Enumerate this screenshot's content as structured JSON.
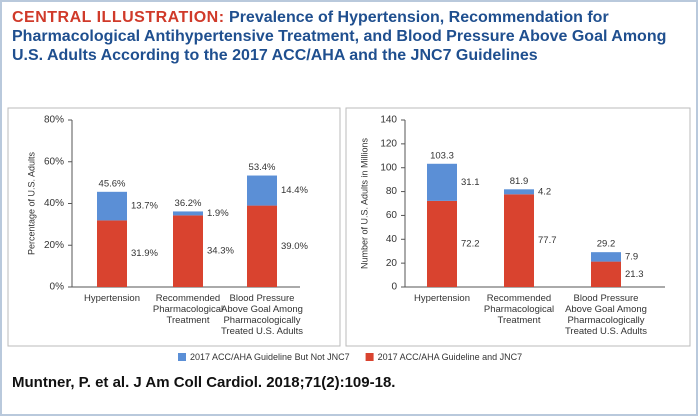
{
  "header": {
    "label": "CENTRAL ILLUSTRATION:",
    "title": "Prevalence of Hypertension, Recommendation for Pharmacological Antihypertensive Treatment, and Blood Pressure Above Goal Among U.S. Adults According to the 2017 ACC/AHA and the JNC7 Guidelines"
  },
  "chart_data": [
    {
      "type": "stacked-bar",
      "ylabel": "Percentage of U.S. Adults",
      "categories": [
        "Hypertension",
        "Recommended Pharmacological Treatment",
        "Blood Pressure Above Goal Among Pharmacologically Treated U.S. Adults"
      ],
      "series": [
        {
          "name": "2017 ACC/AHA Guideline and JNC7",
          "color": "#d9432f",
          "values": [
            31.9,
            34.3,
            39.0
          ],
          "value_labels": [
            "31.9%",
            "34.3%",
            "39.0%"
          ]
        },
        {
          "name": "2017 ACC/AHA Guideline But Not JNC7",
          "color": "#5b8fd6",
          "values": [
            13.7,
            1.9,
            14.4
          ],
          "value_labels": [
            "13.7%",
            "1.9%",
            "14.4%"
          ]
        }
      ],
      "totals": [
        45.6,
        36.2,
        53.4
      ],
      "total_labels": [
        "45.6%",
        "36.2%",
        "53.4%"
      ],
      "ylim": [
        0,
        80
      ],
      "yticks": [
        {
          "value": 0,
          "label": "0%"
        },
        {
          "value": 20,
          "label": "20%"
        },
        {
          "value": 40,
          "label": "40%"
        },
        {
          "value": 60,
          "label": "60%"
        },
        {
          "value": 80,
          "label": "80%"
        }
      ]
    },
    {
      "type": "stacked-bar",
      "ylabel": "Number of U.S. Adults in Millions",
      "categories": [
        "Hypertension",
        "Recommended Pharmacological Treatment",
        "Blood Pressure Above Goal Among Pharmacologically Treated U.S. Adults"
      ],
      "series": [
        {
          "name": "2017 ACC/AHA Guideline and JNC7",
          "color": "#d9432f",
          "values": [
            72.2,
            77.7,
            21.3
          ]
        },
        {
          "name": "2017 ACC/AHA Guideline But Not JNC7",
          "color": "#5b8fd6",
          "values": [
            31.1,
            4.2,
            7.9
          ]
        }
      ],
      "totals": [
        103.3,
        81.9,
        29.2
      ],
      "ylim": [
        0,
        140
      ],
      "yticks": [
        0,
        20,
        40,
        60,
        80,
        100,
        120,
        140
      ]
    }
  ],
  "citation": "Muntner, P. et al. J Am Coll Cardiol. 2018;71(2):109-18."
}
